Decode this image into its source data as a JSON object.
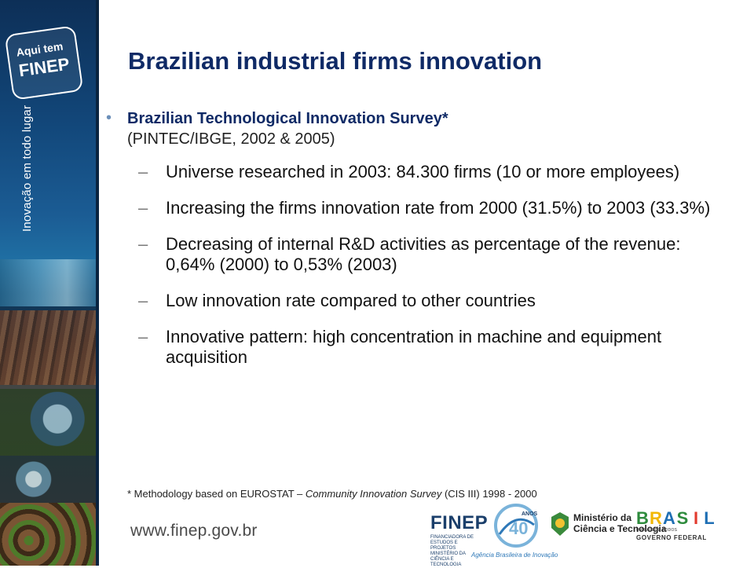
{
  "sidebar": {
    "logo_line1": "Aqui tem",
    "logo_line2": "FINEP",
    "tagline": "Inovação em todo lugar"
  },
  "title": "Brazilian industrial firms innovation",
  "bullet": {
    "head": "Brazilian Technological Innovation Survey*",
    "sub": "(PINTEC/IBGE, 2002 & 2005)"
  },
  "items": [
    "Universe researched in 2003: 84.300 firms (10 or more employees)",
    "Increasing the firms innovation rate from 2000 (31.5%) to 2003 (33.3%)",
    "Decreasing of internal R&D activities as percentage of the revenue: 0,64% (2000) to 0,53% (2003)",
    "Low innovation rate compared to other countries",
    "Innovative pattern: high concentration in machine and equipment acquisition"
  ],
  "footnote": {
    "prefix": "* Methodology based on EUROSTAT – ",
    "italic": "Community Innovation Survey",
    "suffix": " (CIS III) 1998 - 2000"
  },
  "footer": {
    "url": "www.finep.gov.br",
    "finep_word": "FINEP",
    "finep_small": "FINANCIADORA DE ESTUDOS E PROJETOS MINISTÉRIO DA CIÊNCIA E TECNOLOGIA",
    "anos_label": "ANOS",
    "anos_number": "40",
    "agencia": "Agência Brasileira de Inovação",
    "ministerio_line1": "Ministério da",
    "ministerio_line2": "Ciência e Tecnologia",
    "brasil_letters": [
      "B",
      "R",
      "A",
      "S",
      "I",
      "L"
    ],
    "brasil_colors": [
      "#2e8b3d",
      "#f2b705",
      "#1f6fb4",
      "#2e8b3d",
      "#e23b2e",
      "#1f6fb4"
    ],
    "um_pais": "UM PAÍS DE TODOS",
    "governo": "GOVERNO FEDERAL"
  }
}
